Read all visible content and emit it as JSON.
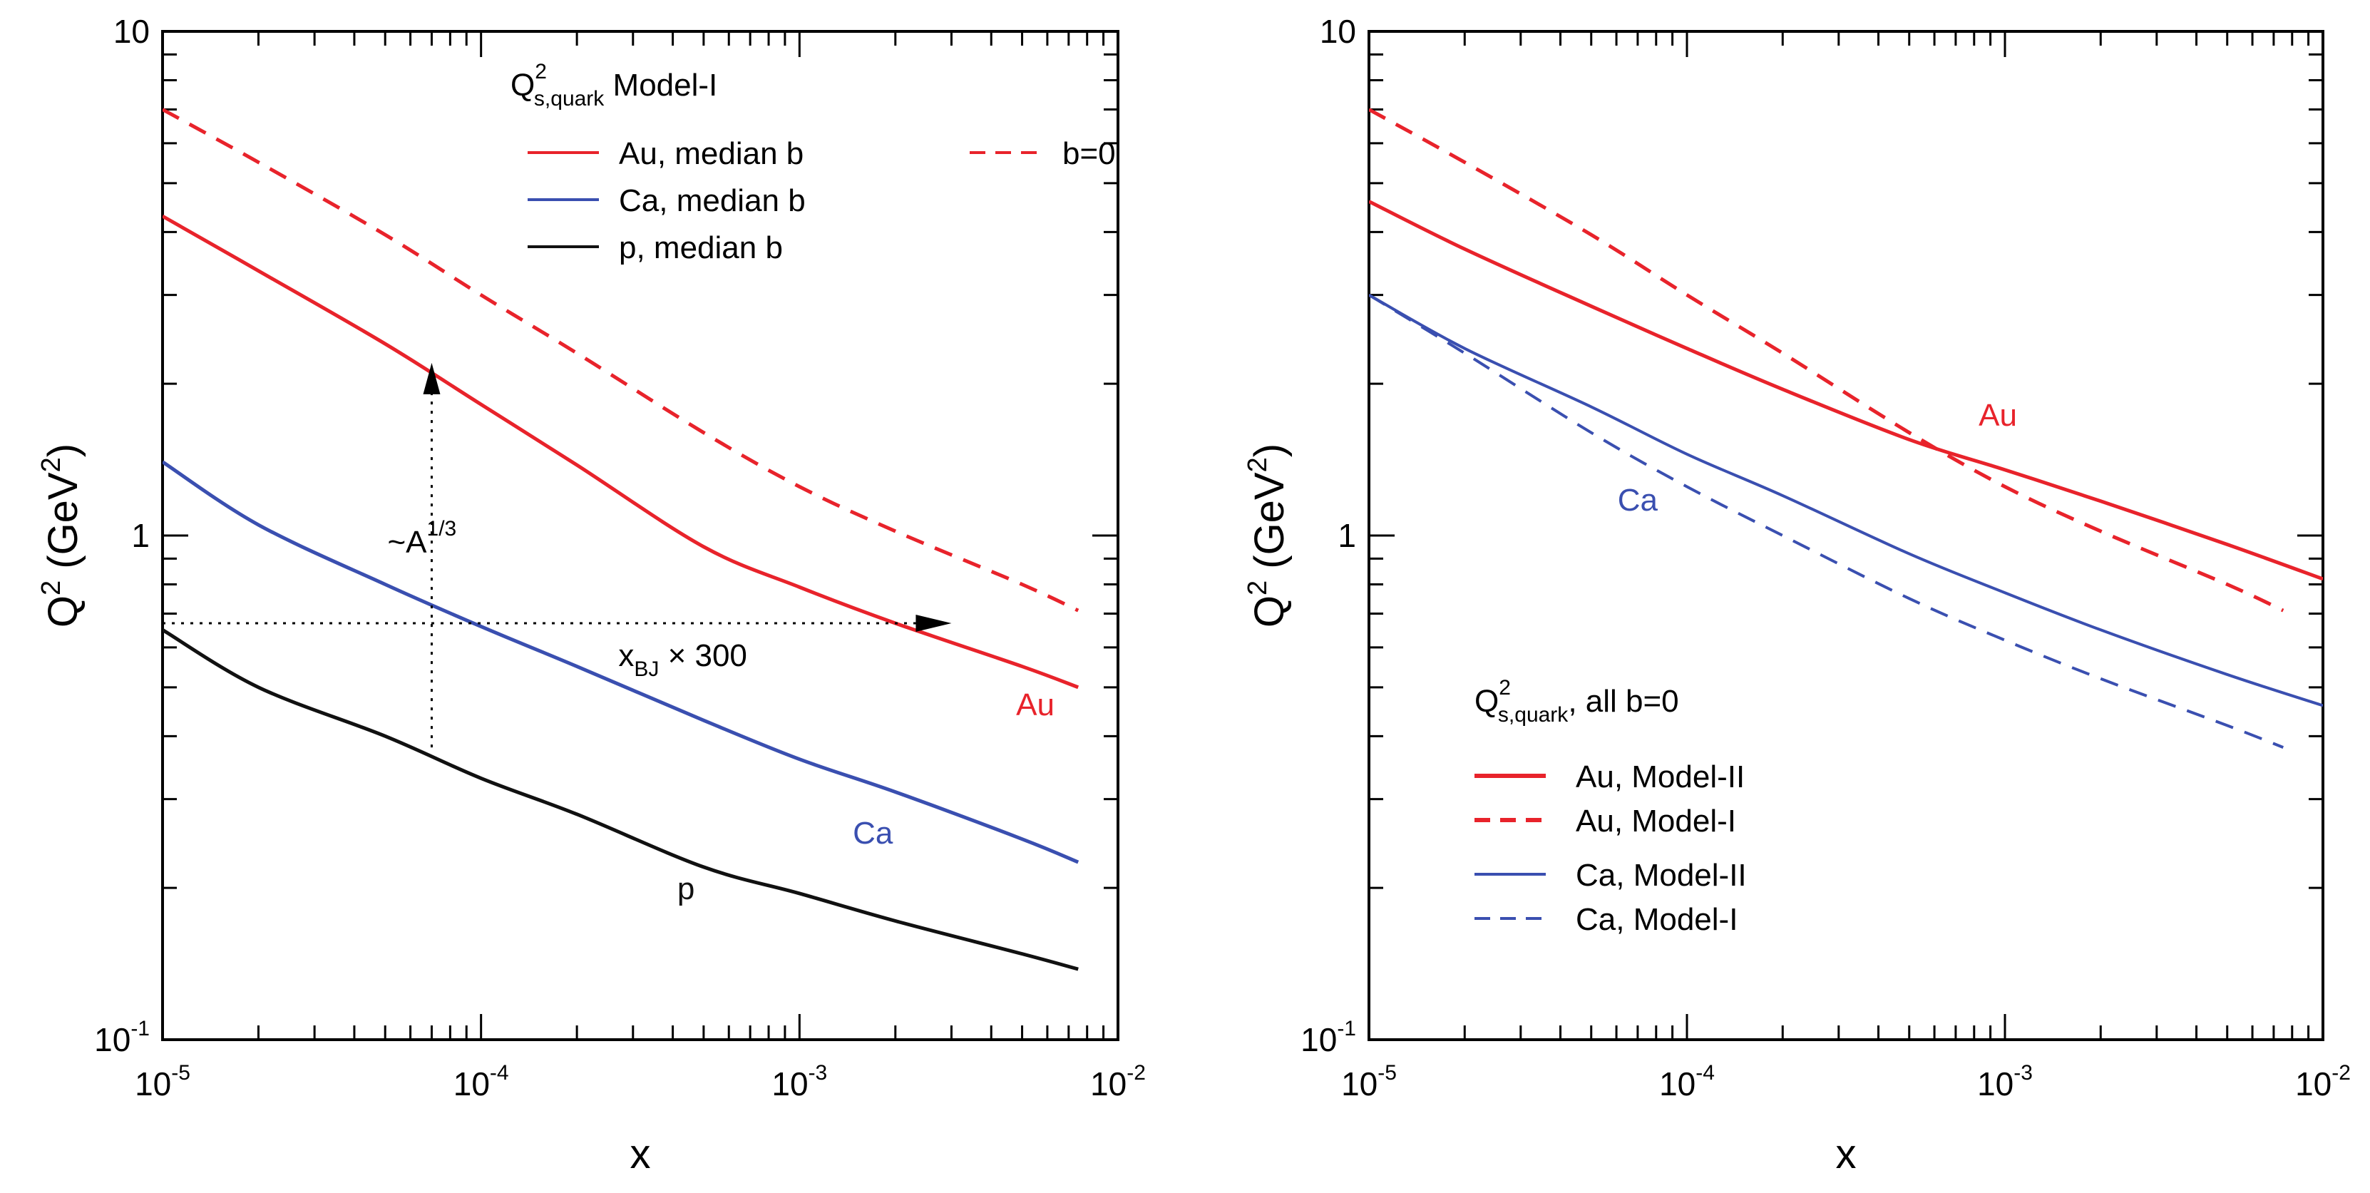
{
  "chart_data": [
    {
      "type": "line",
      "panel": "left",
      "xlabel": "x",
      "ylabel": {
        "base": "Q",
        "sup": "2",
        "rest": " (GeV",
        "rest_sup": "2",
        "close": ")"
      },
      "xscale": "log",
      "yscale": "log",
      "xlim": [
        1e-05,
        0.01
      ],
      "ylim": [
        0.1,
        10
      ],
      "x_ticks": [
        {
          "value": 1e-05,
          "base": "10",
          "exp": "-5"
        },
        {
          "value": 0.0001,
          "base": "10",
          "exp": "-4"
        },
        {
          "value": 0.001,
          "base": "10",
          "exp": "-3"
        },
        {
          "value": 0.01,
          "base": "10",
          "exp": "-2"
        }
      ],
      "y_ticks": [
        {
          "value": 0.1,
          "base": "10",
          "exp": "-1"
        },
        {
          "value": 1,
          "base": "1",
          "exp": ""
        },
        {
          "value": 10,
          "base": "10",
          "exp": ""
        }
      ],
      "legend": {
        "title_base": "Q",
        "title_sup": "2",
        "title_sub": "s,quark",
        "title_rest": " Model-I",
        "placement": "top-center",
        "entries": [
          "Au, median b",
          "Ca, median b",
          "p, median b",
          "b=0"
        ]
      },
      "series": [
        {
          "name": "Au, median b",
          "color": "#e8232b",
          "dash": "solid",
          "x": [
            1e-05,
            2e-05,
            5e-05,
            0.0001,
            0.0002,
            0.0005,
            0.001,
            0.002,
            0.005,
            0.0075
          ],
          "y": [
            4.3,
            3.35,
            2.4,
            1.82,
            1.38,
            0.95,
            0.79,
            0.67,
            0.55,
            0.5
          ]
        },
        {
          "name": "Au, b=0",
          "color": "#e8232b",
          "dash": "dashed",
          "x": [
            1e-05,
            2e-05,
            5e-05,
            0.0001,
            0.0002,
            0.0005,
            0.001,
            0.002,
            0.005,
            0.0075
          ],
          "y": [
            7.0,
            5.5,
            3.95,
            3.0,
            2.3,
            1.6,
            1.25,
            1.02,
            0.8,
            0.71
          ]
        },
        {
          "name": "Ca, median b",
          "color": "#3a4fb0",
          "dash": "solid",
          "x": [
            1e-05,
            2e-05,
            5e-05,
            0.0001,
            0.0002,
            0.0005,
            0.001,
            0.002,
            0.005,
            0.0075
          ],
          "y": [
            1.4,
            1.05,
            0.8,
            0.66,
            0.55,
            0.43,
            0.36,
            0.31,
            0.25,
            0.225
          ]
        },
        {
          "name": "p, median b",
          "color": "#111111",
          "dash": "solid",
          "x": [
            1e-05,
            2e-05,
            5e-05,
            0.0001,
            0.0002,
            0.0005,
            0.001,
            0.002,
            0.005,
            0.0075
          ],
          "y": [
            0.65,
            0.5,
            0.4,
            0.33,
            0.28,
            0.22,
            0.195,
            0.172,
            0.148,
            0.138
          ]
        }
      ],
      "annotations": [
        {
          "text_base": "~A",
          "text_sup": "1/3",
          "x_at": 7e-05,
          "from_y": 0.38,
          "to_y": 2.2,
          "kind": "vertical-arrow"
        },
        {
          "text_base": "x",
          "text_sub": "BJ",
          "text_rest": " × 300",
          "y_at": 0.67,
          "from_x": 1e-05,
          "to_x": 0.003,
          "kind": "horizontal-arrow"
        },
        {
          "text": "Au",
          "color": "#e8232b",
          "x": 0.0055,
          "y": 0.44
        },
        {
          "text": "Ca",
          "color": "#3a4fb0",
          "x": 0.0017,
          "y": 0.245
        },
        {
          "text": "p",
          "color": "#111111",
          "x": 0.00044,
          "y": 0.19
        }
      ]
    },
    {
      "type": "line",
      "panel": "right",
      "xlabel": "x",
      "ylabel": {
        "base": "Q",
        "sup": "2",
        "rest": " (GeV",
        "rest_sup": "2",
        "close": ")"
      },
      "xscale": "log",
      "yscale": "log",
      "xlim": [
        1e-05,
        0.01
      ],
      "ylim": [
        0.1,
        10
      ],
      "x_ticks": [
        {
          "value": 1e-05,
          "base": "10",
          "exp": "-5"
        },
        {
          "value": 0.0001,
          "base": "10",
          "exp": "-4"
        },
        {
          "value": 0.001,
          "base": "10",
          "exp": "-3"
        },
        {
          "value": 0.01,
          "base": "10",
          "exp": "-2"
        }
      ],
      "y_ticks": [
        {
          "value": 0.1,
          "base": "10",
          "exp": "-1"
        },
        {
          "value": 1,
          "base": "1",
          "exp": ""
        },
        {
          "value": 10,
          "base": "10",
          "exp": ""
        }
      ],
      "legend": {
        "title_base": "Q",
        "title_sup": "2",
        "title_sub": "s,quark",
        "title_rest": ", all b=0",
        "placement": "bottom-center",
        "entries": [
          "Au, Model-II",
          "Au, Model-I",
          "Ca, Model-II",
          "Ca, Model-I"
        ]
      },
      "series": [
        {
          "name": "Au, Model-II",
          "color": "#e8232b",
          "dash": "solid",
          "width": "thick",
          "x": [
            1e-05,
            2e-05,
            5e-05,
            0.0001,
            0.0002,
            0.0005,
            0.001,
            0.002,
            0.005,
            0.01
          ],
          "y": [
            4.6,
            3.7,
            2.85,
            2.35,
            1.95,
            1.55,
            1.35,
            1.17,
            0.96,
            0.82
          ]
        },
        {
          "name": "Au, Model-I",
          "color": "#e8232b",
          "dash": "dashed",
          "width": "thick",
          "x": [
            1e-05,
            2e-05,
            5e-05,
            0.0001,
            0.0002,
            0.0005,
            0.001,
            0.002,
            0.005,
            0.0075
          ],
          "y": [
            7.0,
            5.5,
            3.95,
            3.0,
            2.3,
            1.6,
            1.25,
            1.02,
            0.8,
            0.71
          ]
        },
        {
          "name": "Ca, Model-II",
          "color": "#3a4fb0",
          "dash": "solid",
          "width": "thin",
          "x": [
            1e-05,
            2e-05,
            5e-05,
            0.0001,
            0.0002,
            0.0005,
            0.001,
            0.002,
            0.005,
            0.01
          ],
          "y": [
            3.0,
            2.35,
            1.8,
            1.45,
            1.2,
            0.92,
            0.77,
            0.65,
            0.53,
            0.46
          ]
        },
        {
          "name": "Ca, Model-I",
          "color": "#3a4fb0",
          "dash": "dashed",
          "width": "thin",
          "x": [
            1e-05,
            2e-05,
            5e-05,
            0.0001,
            0.0002,
            0.0005,
            0.001,
            0.002,
            0.005,
            0.0075
          ],
          "y": [
            3.0,
            2.3,
            1.6,
            1.25,
            1.0,
            0.75,
            0.62,
            0.52,
            0.42,
            0.38
          ]
        }
      ],
      "annotations": [
        {
          "text": "Au",
          "color": "#e8232b",
          "x": 0.00095,
          "y": 1.65
        },
        {
          "text": "Ca",
          "color": "#3a4fb0",
          "x": 7e-05,
          "y": 1.12
        }
      ]
    }
  ]
}
